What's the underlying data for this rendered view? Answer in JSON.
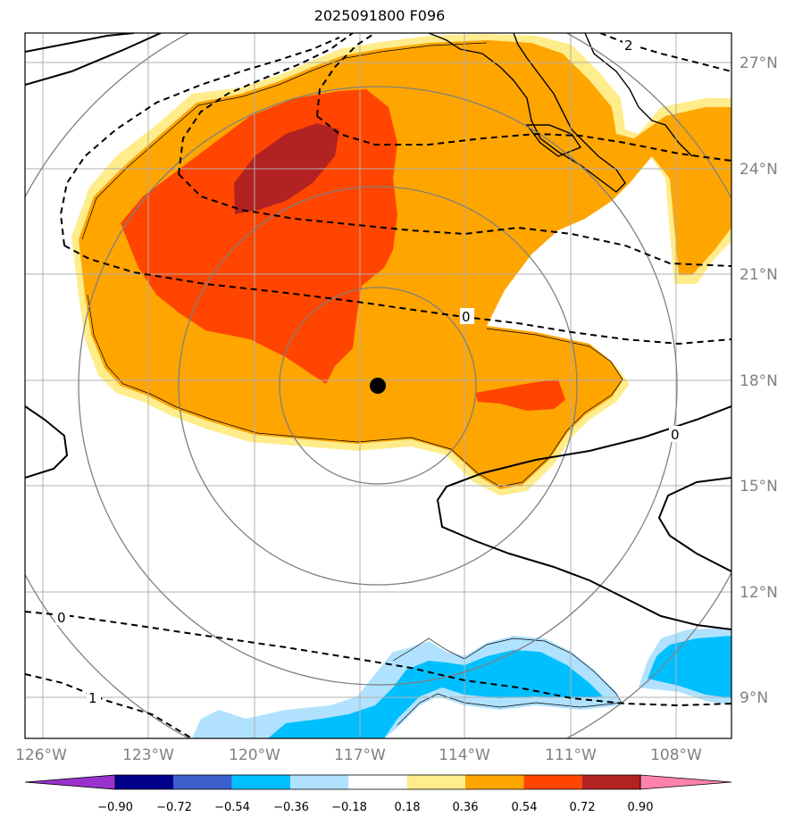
{
  "title": "2025091800 F096",
  "lat_labels": [
    "27°N",
    "24°N",
    "21°N",
    "18°N",
    "15°N",
    "12°N",
    "9°N"
  ],
  "lon_labels": [
    "126°W",
    "123°W",
    "120°W",
    "117°W",
    "114°W",
    "111°W",
    "108°W"
  ],
  "colorbar": {
    "ticks": [
      "−0.90",
      "−0.72",
      "−0.54",
      "−0.36",
      "−0.18",
      "0.18",
      "0.36",
      "0.54",
      "0.72",
      "0.90"
    ],
    "colors": [
      "#9932cc",
      "#00008b",
      "#3a5fcd",
      "#00bfff",
      "#b0e2ff",
      "#ffffff",
      "#ffec8b",
      "#ffa500",
      "#ff4500",
      "#b22222",
      "#ff82ab"
    ]
  },
  "contour_labels": {
    "top_right": "2",
    "mid": "0",
    "right": "0",
    "bottom_left": "0",
    "bottom_left_1": "1"
  },
  "storm_center": {
    "lat": 17.8,
    "lon": -116.5
  },
  "colors": {
    "gridline": "#b0b0b0",
    "range_ring": "#808080",
    "fill_orange": "#ffa500",
    "fill_red": "#ff4500",
    "fill_darkred": "#b22222",
    "fill_yellow": "#ffec8b",
    "fill_cyan": "#00bfff",
    "fill_lightblue": "#b0e2ff"
  }
}
